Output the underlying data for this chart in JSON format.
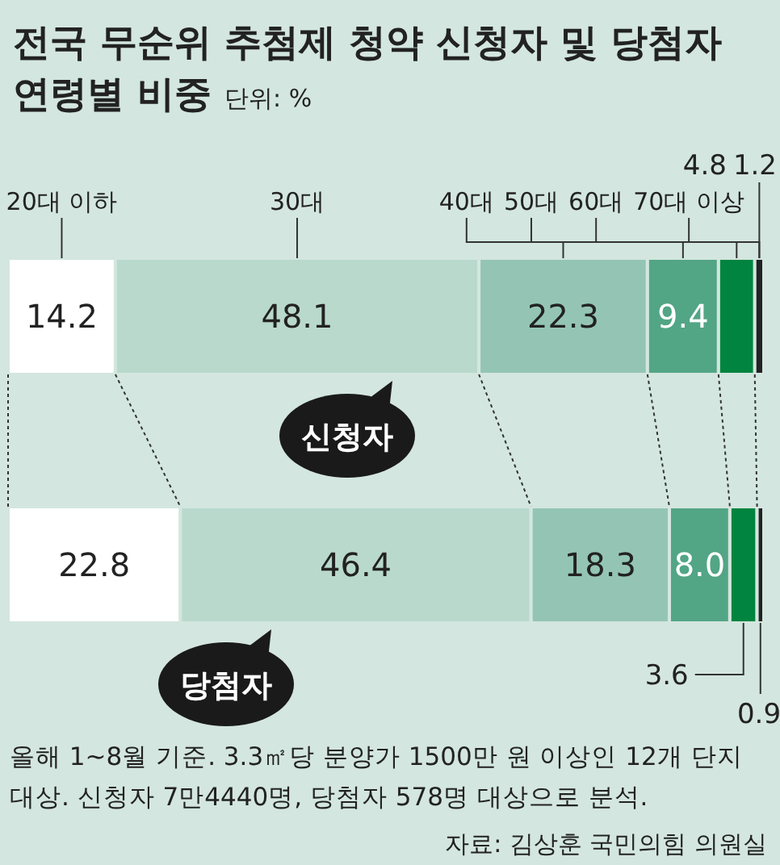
{
  "chart_data": {
    "type": "bar",
    "orientation": "horizontal",
    "stacked": true,
    "title": "전국 무순위 추첨제 청약 신청자 및 당첨자 연령별 비중",
    "subtitle": "단위: %",
    "categories": [
      "신청자",
      "당첨자"
    ],
    "series": [
      {
        "name": "20대 이하",
        "color": "#ffffff",
        "values": [
          14.2,
          22.8
        ],
        "value_labels": [
          "14.2",
          "22.8"
        ]
      },
      {
        "name": "30대",
        "color": "#b9d9cd",
        "values": [
          48.1,
          46.4
        ],
        "value_labels": [
          "48.1",
          "46.4"
        ]
      },
      {
        "name": "40대",
        "color": "#94c5b4",
        "values": [
          22.3,
          18.3
        ],
        "value_labels": [
          "22.3",
          "18.3"
        ]
      },
      {
        "name": "50대",
        "color": "#52a585",
        "values": [
          9.4,
          8.0
        ],
        "value_labels": [
          "9.4",
          "8.0"
        ]
      },
      {
        "name": "60대",
        "color": "#00843f",
        "values": [
          4.8,
          3.6
        ],
        "value_labels": [
          "4.8",
          "3.6"
        ]
      },
      {
        "name": "70대 이상",
        "color": "#222222",
        "values": [
          1.2,
          0.9
        ],
        "value_labels": [
          "1.2",
          "0.9"
        ]
      }
    ],
    "legend": "top",
    "annotations": [
      "올해 1~8월 기준. 3.3㎡당 분양가 1500만 원 이상인 12개 단지 대상. 신청자 7만4440명, 당첨자 578명 대상으로 분석.",
      "자료: 김상훈 국민의힘 의원실"
    ]
  }
}
